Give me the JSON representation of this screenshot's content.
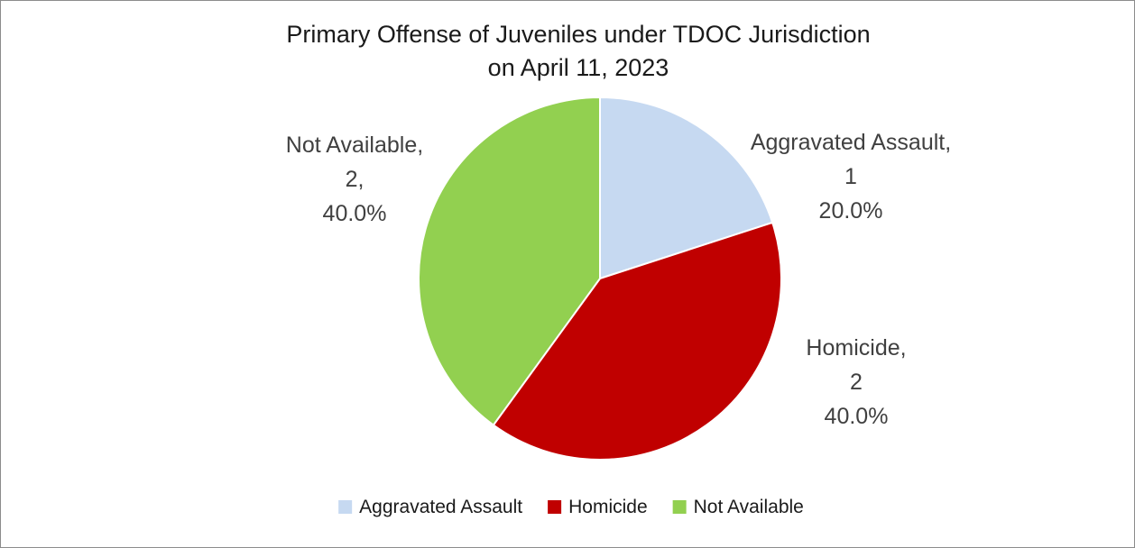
{
  "chart_data": {
    "type": "pie",
    "title": [
      "Primary Offense of Juveniles under TDOC Jurisdiction",
      "on April 11, 2023"
    ],
    "legend_position": "bottom",
    "slices": [
      {
        "name": "Aggravated Assault",
        "value": 1,
        "percent": "20.0%",
        "color": "#c6d9f1",
        "label_lines": [
          "Aggravated Assault,",
          "1",
          "20.0%"
        ]
      },
      {
        "name": "Homicide",
        "value": 2,
        "percent": "40.0%",
        "color": "#c00000",
        "label_lines": [
          "Homicide,",
          "2",
          "40.0%"
        ]
      },
      {
        "name": "Not Available",
        "value": 2,
        "percent": "40.0%",
        "color": "#92d050",
        "label_lines": [
          "Not Available,",
          "2,",
          "40.0%"
        ]
      }
    ]
  }
}
